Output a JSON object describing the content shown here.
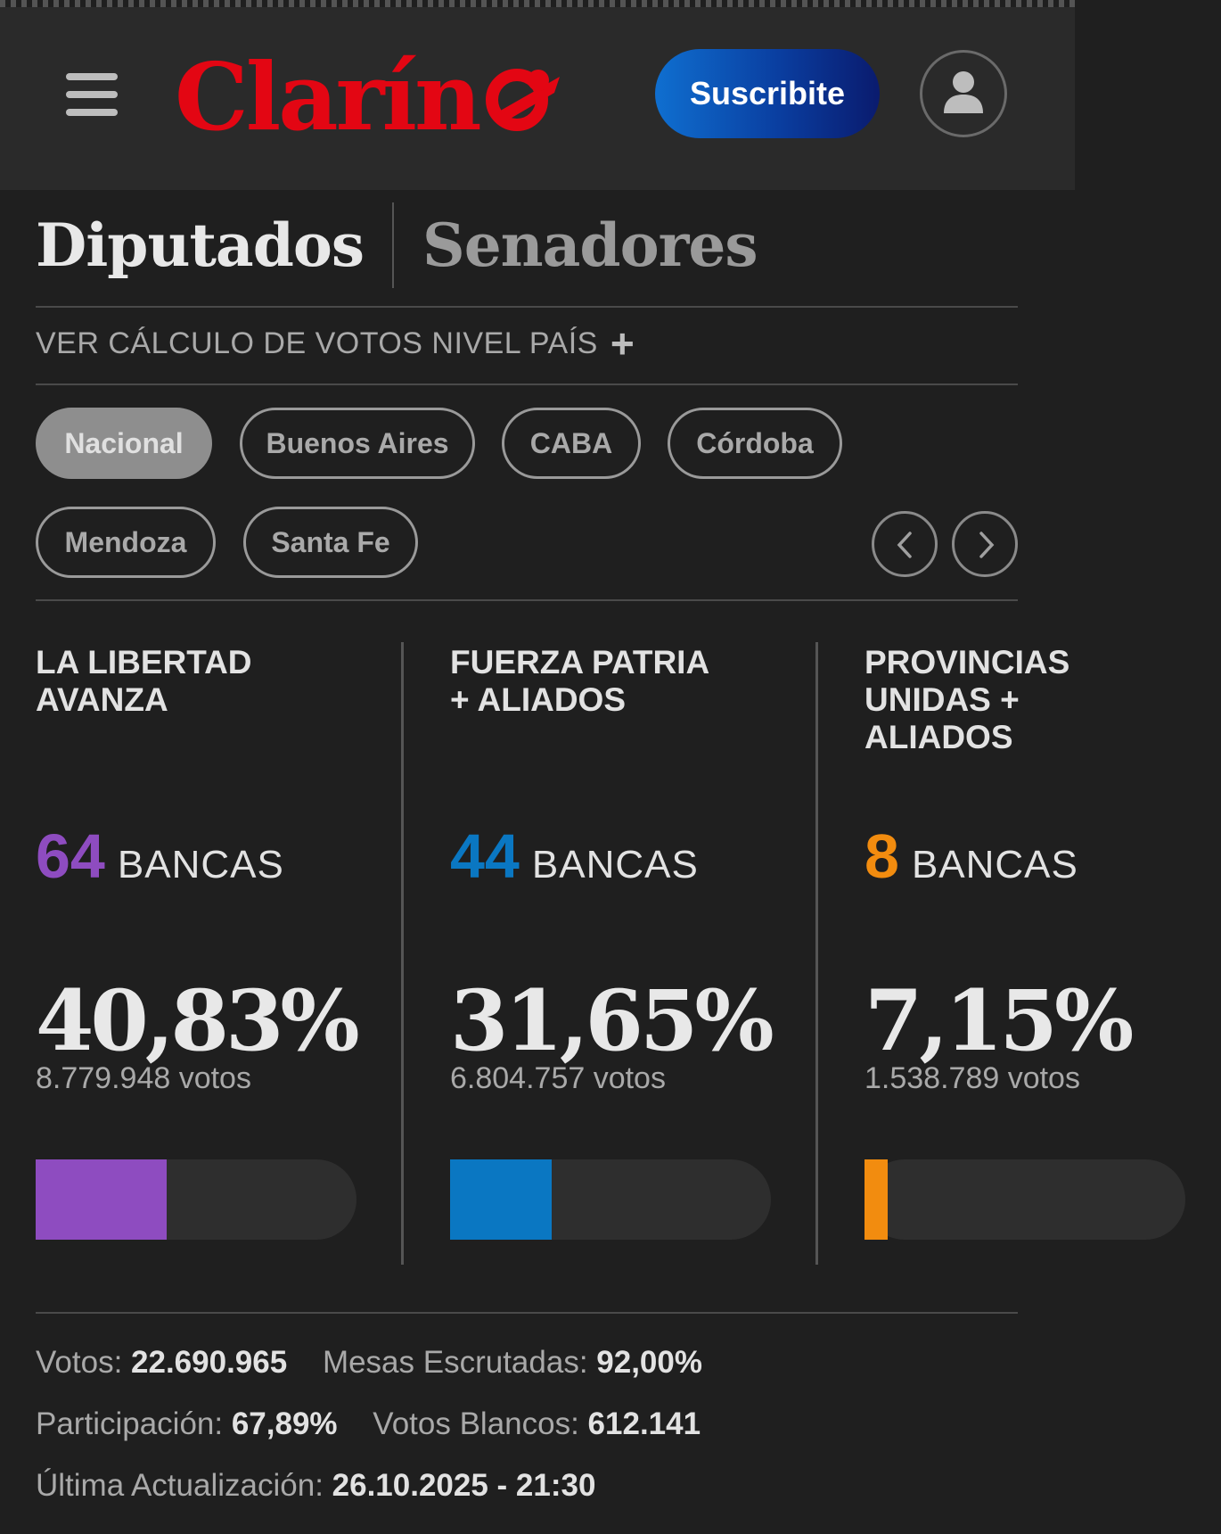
{
  "header": {
    "logo_text": "Clarín",
    "subscribe_label": "Suscribite"
  },
  "tabs": [
    {
      "label": "Diputados",
      "active": true
    },
    {
      "label": "Senadores",
      "active": false
    }
  ],
  "calc_link": {
    "label": "VER CÁLCULO DE VOTOS NIVEL PAÍS",
    "plus": "+"
  },
  "filters": [
    {
      "label": "Nacional",
      "selected": true
    },
    {
      "label": "Buenos Aires",
      "selected": false
    },
    {
      "label": "CABA",
      "selected": false
    },
    {
      "label": "Córdoba",
      "selected": false
    },
    {
      "label": "Mendoza",
      "selected": false
    },
    {
      "label": "Santa Fe",
      "selected": false
    }
  ],
  "parties": [
    {
      "name_line1": "LA LIBERTAD",
      "name_line2": "AVANZA",
      "name_line3": "",
      "seats": "64",
      "seats_label": "BANCAS",
      "percent": "40,83%",
      "votes": "8.779.948 votos",
      "bar_fraction": 0.4083,
      "color": "#8e4cc0"
    },
    {
      "name_line1": "FUERZA PATRIA",
      "name_line2": "+ ALIADOS",
      "name_line3": "",
      "seats": "44",
      "seats_label": "BANCAS",
      "percent": "31,65%",
      "votes": "6.804.757 votos",
      "bar_fraction": 0.3165,
      "color": "#0a77c2"
    },
    {
      "name_line1": "PROVINCIAS",
      "name_line2": "UNIDAS +",
      "name_line3": "ALIADOS",
      "seats": "8",
      "seats_label": "BANCAS",
      "percent": "7,15%",
      "votes": "1.538.789 votos",
      "bar_fraction": 0.0715,
      "color": "#f28c0f"
    }
  ],
  "stats": {
    "votos_label": "Votos: ",
    "votos_value": "22.690.965",
    "mesas_label": "Mesas Escrutadas: ",
    "mesas_value": "92,00%",
    "participacion_label": "Participación: ",
    "participacion_value": "67,89%",
    "blancos_label": "Votos Blancos: ",
    "blancos_value": "612.141",
    "actualizacion_label": "Última Actualización: ",
    "actualizacion_value": "26.10.2025 - 21:30"
  }
}
